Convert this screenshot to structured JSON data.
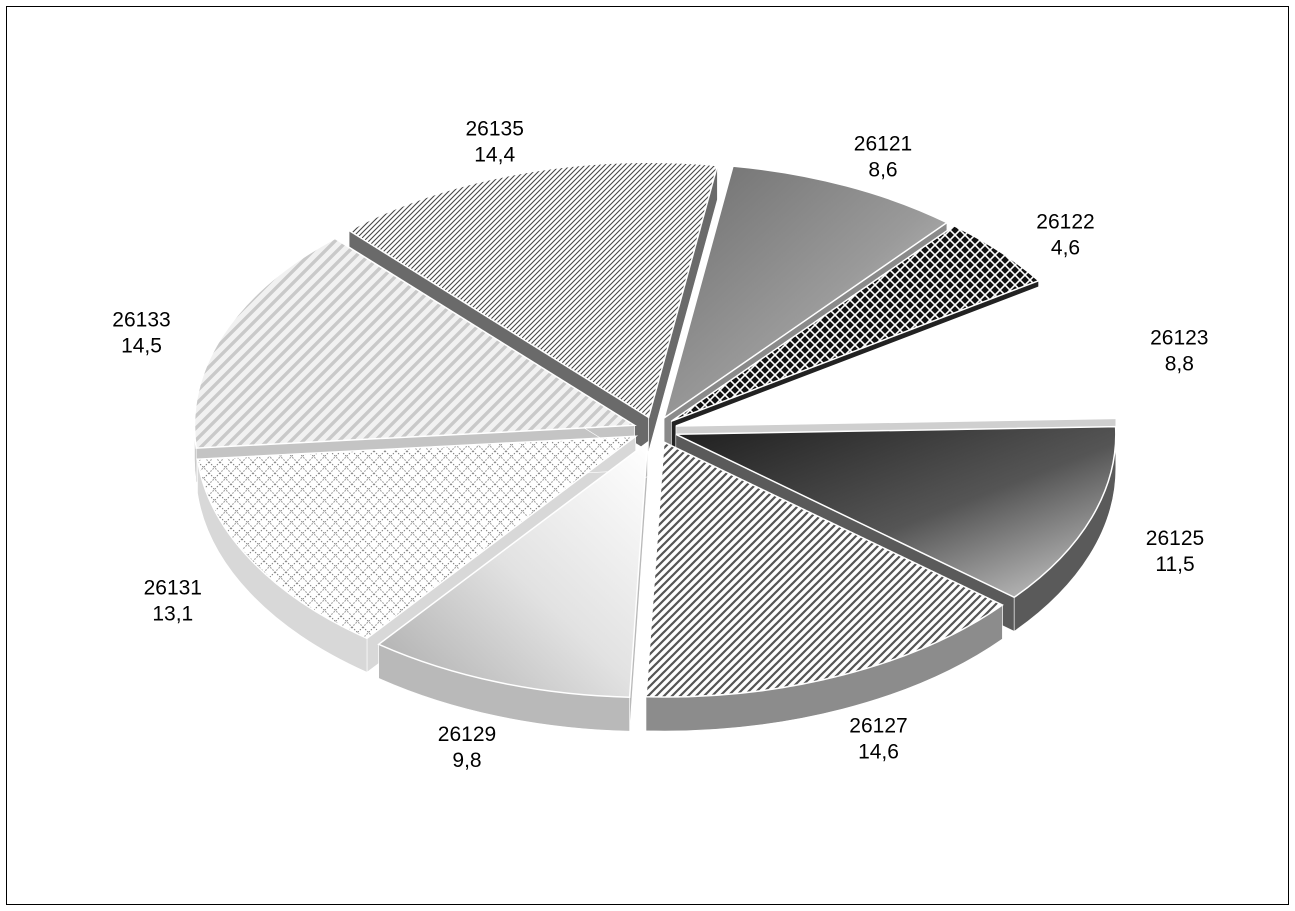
{
  "chart_data": {
    "type": "pie",
    "style": "3d-exploded",
    "title": "",
    "legend": "none",
    "slices": [
      {
        "label": "26121",
        "value": 8.6,
        "display_value": "8,6",
        "fill": "gradient-gray"
      },
      {
        "label": "26122",
        "value": 4.6,
        "display_value": "4,6",
        "fill": "crosshatch-dark"
      },
      {
        "label": "26123",
        "value": 8.8,
        "display_value": "8,8",
        "fill": "white"
      },
      {
        "label": "26125",
        "value": 11.5,
        "display_value": "11,5",
        "fill": "gradient-dark"
      },
      {
        "label": "26127",
        "value": 14.6,
        "display_value": "14,6",
        "fill": "diagonal-stripes"
      },
      {
        "label": "26129",
        "value": 9.8,
        "display_value": "9,8",
        "fill": "gradient-light"
      },
      {
        "label": "26131",
        "value": 13.1,
        "display_value": "13,1",
        "fill": "dotted-grid"
      },
      {
        "label": "26133",
        "value": 14.5,
        "display_value": "14,5",
        "fill": "vertical-stripes-light"
      },
      {
        "label": "26135",
        "value": 14.4,
        "display_value": "14,4",
        "fill": "fine-diagonal"
      }
    ]
  },
  "colors": {
    "frame": "#000000",
    "background": "#ffffff",
    "label": "#000000"
  }
}
